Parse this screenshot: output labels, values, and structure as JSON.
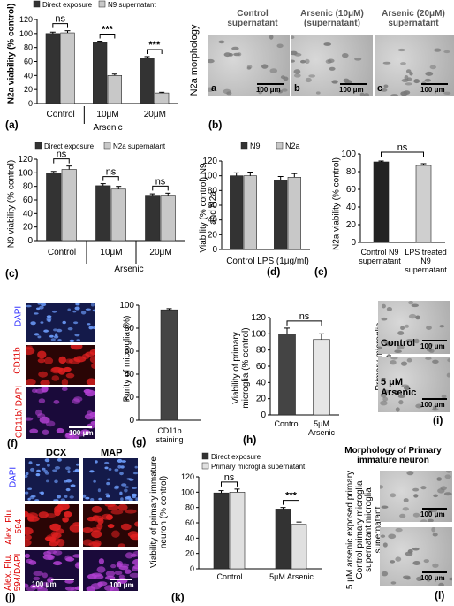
{
  "panels": {
    "a": {
      "letter": "(a)",
      "ylabel": "N2a viability (% control)",
      "legend": [
        "Direct exposure",
        "N9 supernatant"
      ],
      "cats": [
        "Control",
        "10μM",
        "20μM"
      ],
      "group_label": "Arsenic",
      "sig": [
        "ns",
        "***",
        "***"
      ]
    },
    "b": {
      "letter": "(b)",
      "ylabel": "N2a morphology",
      "titles": [
        "Control supernatant",
        "Arsenic  (10μM) (supernatant)",
        "Arsenic (20μM) supernatant"
      ],
      "sub": [
        "a",
        "b",
        "c"
      ],
      "scale": "100 μm"
    },
    "c": {
      "letter": "(c)",
      "ylabel": "N9 viability (% control)",
      "legend": [
        "Direct exposure",
        "N2a supernatant"
      ],
      "cats": [
        "Control",
        "10μM",
        "20μM"
      ],
      "group_label": "Arsenic",
      "sig": [
        "ns",
        "ns",
        "ns"
      ]
    },
    "d": {
      "letter": "(d)",
      "ylabel": "Viability (% control) N9 and N2a",
      "legend": [
        "N9",
        "N2a"
      ],
      "xlabel": "Control LPS (1μg/ml)"
    },
    "e": {
      "letter": "(e)",
      "ylabel": "N2a viability (% control)",
      "cats": [
        "Control N9 supernatant",
        "LPS treated N9 supernatant"
      ],
      "sig": "ns"
    },
    "f": {
      "letter": "(f)",
      "labels": [
        "DAPI",
        "CD11b",
        "CD11b/ DAPI"
      ],
      "scale": "100 μm"
    },
    "g": {
      "letter": "(g)",
      "ylabel": "Purity of microglia (%)",
      "cat": "CD11b staining"
    },
    "h": {
      "letter": "(h)",
      "ylabel": "Viability of primary microglia (% control)",
      "cats": [
        "Control",
        "5μM Arsenic"
      ],
      "sig": "ns"
    },
    "i": {
      "letter": "(i)",
      "ylabel": "Primary microglia morphology",
      "labels": [
        "Control",
        "5 μM Arsenic"
      ],
      "scale": "100 μm"
    },
    "j": {
      "letter": "(j)",
      "cols": [
        "DCX",
        "MAP"
      ],
      "rows": [
        "DAPI",
        "Alex. Flu. 594",
        "Alex. Flu. 594/DAPI"
      ],
      "scale": "100 μm"
    },
    "k": {
      "letter": "(k)",
      "ylabel": "Viability of primary immature neuron (% control)",
      "legend": [
        "Direct exposure",
        "Primary microglia supernatant"
      ],
      "cats": [
        "Control",
        "5μM Arsenic"
      ],
      "sig": [
        "ns",
        "***"
      ]
    },
    "l": {
      "letter": "(l)",
      "title": "Morphology of Primary immature neuron",
      "ylabel": "5 μM arsenic exposed primary Control primary microglia supernatant microglia supernatant",
      "scale": "100 μm"
    }
  },
  "chart_data": [
    {
      "id": "a",
      "type": "bar",
      "title": "",
      "ylabel": "N2a viability (% control)",
      "ylim": [
        0,
        120
      ],
      "yticks": [
        0,
        20,
        40,
        60,
        80,
        100,
        120
      ],
      "categories": [
        "Control",
        "10μM",
        "20μM"
      ],
      "series": [
        {
          "name": "Direct exposure",
          "color": "#333333",
          "values": [
            100,
            87,
            65
          ],
          "err": [
            2,
            2,
            2
          ]
        },
        {
          "name": "N9 supernatant",
          "color": "#c8c8c8",
          "values": [
            101,
            40,
            15
          ],
          "err": [
            3,
            2,
            1
          ]
        }
      ]
    },
    {
      "id": "c",
      "type": "bar",
      "title": "",
      "ylabel": "N9 viability (% control)",
      "ylim": [
        0,
        120
      ],
      "yticks": [
        0,
        20,
        40,
        60,
        80,
        100,
        120
      ],
      "categories": [
        "Control",
        "10μM",
        "20μM"
      ],
      "series": [
        {
          "name": "Direct exposure",
          "color": "#333333",
          "values": [
            100,
            81,
            67
          ],
          "err": [
            2,
            3,
            2
          ]
        },
        {
          "name": "N2a supernatant",
          "color": "#c8c8c8",
          "values": [
            105,
            76,
            67
          ],
          "err": [
            5,
            4,
            3
          ]
        }
      ]
    },
    {
      "id": "d",
      "type": "bar",
      "title": "",
      "ylabel": "Viability (% control) N9 and N2a",
      "ylim": [
        0,
        120
      ],
      "yticks": [
        0,
        20,
        40,
        60,
        80,
        100,
        120
      ],
      "categories": [
        "Control",
        "LPS (1μg/ml)"
      ],
      "series": [
        {
          "name": "N9",
          "color": "#333333",
          "values": [
            100,
            94
          ],
          "err": [
            4,
            5
          ]
        },
        {
          "name": "N2a",
          "color": "#c8c8c8",
          "values": [
            100,
            98
          ],
          "err": [
            5,
            5
          ]
        }
      ]
    },
    {
      "id": "e",
      "type": "bar",
      "title": "",
      "ylabel": "N2a viability (% control)",
      "ylim": [
        0,
        100
      ],
      "yticks": [
        0,
        20,
        40,
        60,
        80,
        100
      ],
      "categories": [
        "Control N9 supernatant",
        "LPS treated N9 supernatant"
      ],
      "series": [
        {
          "name": "",
          "color": "#222222",
          "values": [
            91,
            87
          ],
          "err": [
            1,
            2
          ]
        }
      ],
      "bar_colors": [
        "#222222",
        "#cfcfcf"
      ]
    },
    {
      "id": "g",
      "type": "bar",
      "title": "",
      "ylabel": "Purity of microglia (%)",
      "ylim": [
        0,
        100
      ],
      "yticks": [
        0,
        20,
        40,
        60,
        80,
        100
      ],
      "categories": [
        "CD11b staining"
      ],
      "series": [
        {
          "name": "",
          "color": "#444444",
          "values": [
            96
          ],
          "err": [
            1
          ]
        }
      ]
    },
    {
      "id": "h",
      "type": "bar",
      "title": "",
      "ylabel": "Viability of primary microglia (% control)",
      "ylim": [
        0,
        120
      ],
      "yticks": [
        0,
        20,
        40,
        60,
        80,
        100,
        120
      ],
      "categories": [
        "Control",
        "5μM Arsenic"
      ],
      "series": [
        {
          "name": "",
          "color": "#444444",
          "values": [
            100,
            93
          ],
          "err": [
            7,
            7
          ]
        }
      ],
      "bar_colors": [
        "#444444",
        "#e6e6e6"
      ]
    },
    {
      "id": "k",
      "type": "bar",
      "title": "",
      "ylabel": "Viability of primary immature neuron (% control)",
      "ylim": [
        0,
        120
      ],
      "yticks": [
        0,
        20,
        40,
        60,
        80,
        100,
        120
      ],
      "categories": [
        "Control",
        "5μM Arsenic"
      ],
      "series": [
        {
          "name": "Direct exposure",
          "color": "#333333",
          "values": [
            99,
            78
          ],
          "err": [
            3,
            2
          ]
        },
        {
          "name": "Primary microglia supernatant",
          "color": "#e0e0e0",
          "values": [
            100,
            58
          ],
          "err": [
            4,
            3
          ]
        }
      ]
    }
  ]
}
